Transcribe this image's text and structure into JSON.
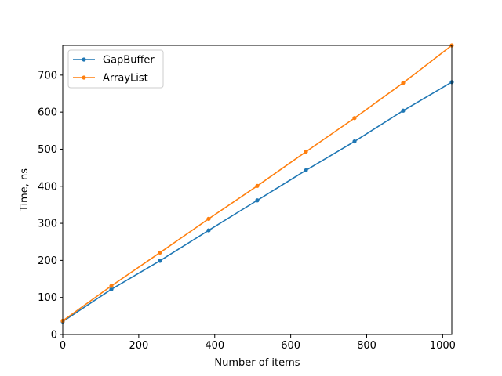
{
  "chart_data": {
    "type": "line",
    "xlabel": "Number of items",
    "ylabel": "Time, ns",
    "xlim": [
      0,
      1024
    ],
    "ylim": [
      0,
      780
    ],
    "xticks": [
      0,
      200,
      400,
      600,
      800,
      1000
    ],
    "yticks": [
      0,
      100,
      200,
      300,
      400,
      500,
      600,
      700
    ],
    "grid": false,
    "legend_position": "upper-left",
    "series": [
      {
        "name": "GapBuffer",
        "color": "#1f77b4",
        "x": [
          0,
          128,
          256,
          384,
          512,
          640,
          768,
          896,
          1024
        ],
        "y": [
          35,
          122,
          199,
          281,
          362,
          443,
          521,
          604,
          681
        ]
      },
      {
        "name": "ArrayList",
        "color": "#ff7f0e",
        "x": [
          0,
          128,
          256,
          384,
          512,
          640,
          768,
          896,
          1024
        ],
        "y": [
          37,
          131,
          221,
          312,
          401,
          493,
          584,
          679,
          780
        ]
      }
    ]
  }
}
